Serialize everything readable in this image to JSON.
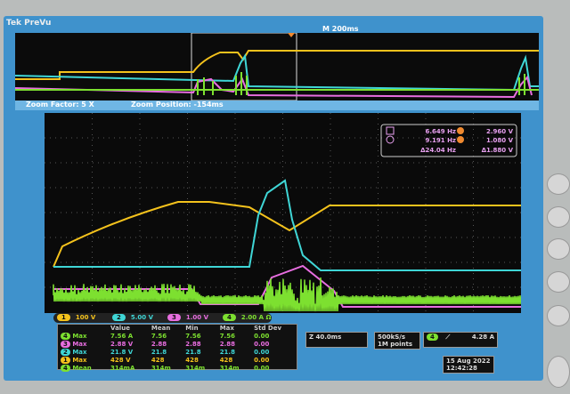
{
  "header": {
    "brand": "Tek PreVu",
    "timebase": "M 200ms"
  },
  "zoom": {
    "factor": "Zoom Factor: 5 X",
    "position": "Zoom Position: -154ms"
  },
  "cursor_readout": {
    "row1_time": "6.649 Hz",
    "row1_volt": "2.960 V",
    "row2_time": "9.191 Hz",
    "row2_volt": "1.080 V",
    "delta_time": "Δ24.04 Hz",
    "delta_volt": "Δ1.880 V",
    "icons": [
      "square-cursor-icon",
      "circle-cursor-icon",
      "cursor-a-icon",
      "cursor-b-icon"
    ]
  },
  "channels": [
    {
      "num": "1",
      "scale": "100 V",
      "color": "#f4c21c"
    },
    {
      "num": "2",
      "scale": "5.00 V",
      "color": "#3fd6d6"
    },
    {
      "num": "3",
      "scale": "1.00 V",
      "color": "#e86ee0"
    },
    {
      "num": "4",
      "scale": "2.00 A",
      "suffix": "Ω",
      "color": "#7de030"
    }
  ],
  "measurements": {
    "headers": [
      "",
      "Value",
      "Mean",
      "Min",
      "Max",
      "Std Dev"
    ],
    "rows": [
      {
        "ch": "4",
        "type": "Max",
        "value": "7.56 A",
        "mean": "7.56",
        "min": "7.56",
        "max": "7.56",
        "std": "0.00",
        "color": "#7de030"
      },
      {
        "ch": "3",
        "type": "Max",
        "value": "2.88 V",
        "mean": "2.88",
        "min": "2.88",
        "max": "2.88",
        "std": "0.00",
        "color": "#e86ee0"
      },
      {
        "ch": "2",
        "type": "Max",
        "value": "21.8 V",
        "mean": "21.8",
        "min": "21.8",
        "max": "21.8",
        "std": "0.00",
        "color": "#3fd6d6"
      },
      {
        "ch": "1",
        "type": "Max",
        "value": "428 V",
        "mean": "428",
        "min": "428",
        "max": "428",
        "std": "0.00",
        "color": "#f4c21c"
      },
      {
        "ch": "4",
        "type": "Mean",
        "value": "314mA",
        "mean": "314m",
        "min": "314m",
        "max": "314m",
        "std": "0.00",
        "color": "#7de030"
      }
    ]
  },
  "status": {
    "zoom_timebase": "Z 40.0ms",
    "sample_rate": "500kS/s",
    "record_length": "1M points",
    "trigger_channel": "4",
    "trigger_slope": "rising-edge-icon",
    "trigger_level": "4.28 A",
    "date": "15 Aug 2022",
    "time": "12:42:28"
  }
}
